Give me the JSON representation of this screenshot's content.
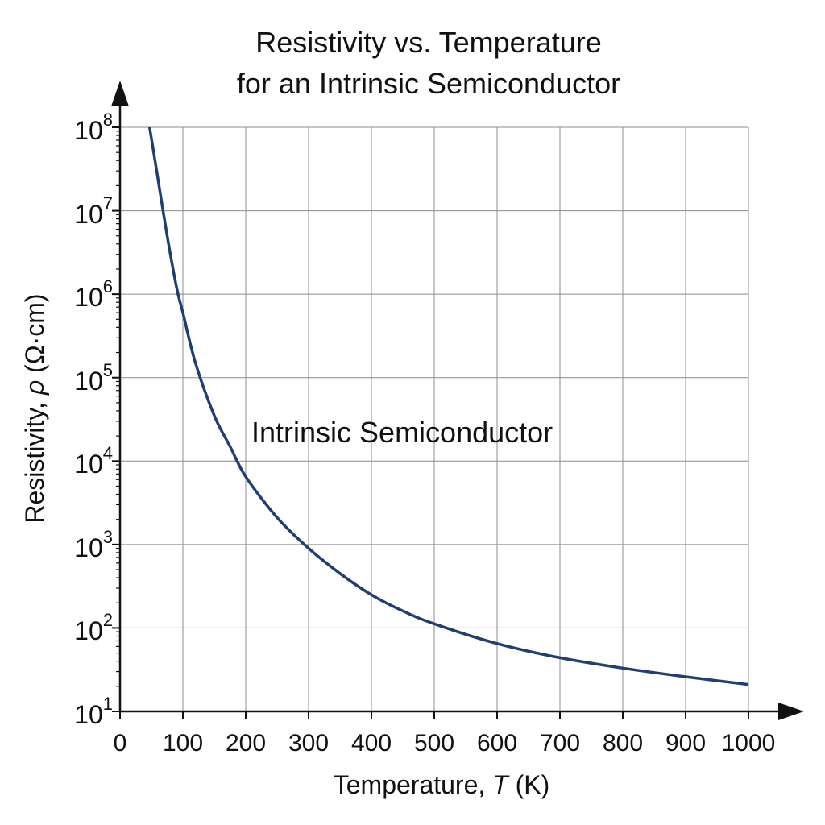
{
  "chart_data": {
    "type": "line",
    "title_lines": [
      "Resistivity vs. Temperature",
      "for an Intrinsic Semiconductor"
    ],
    "xlabel_parts": [
      "Temperature, ",
      "T",
      " (K)"
    ],
    "ylabel_parts": [
      "Resistivity, ",
      "ρ",
      " (Ω·cm)"
    ],
    "x_ticks": [
      "0",
      "100",
      "200",
      "300",
      "400",
      "500",
      "600",
      "700",
      "800",
      "900",
      "1000"
    ],
    "y_ticks": [
      {
        "base": "10",
        "exp": "1"
      },
      {
        "base": "10",
        "exp": "2"
      },
      {
        "base": "10",
        "exp": "3"
      },
      {
        "base": "10",
        "exp": "4"
      },
      {
        "base": "10",
        "exp": "5"
      },
      {
        "base": "10",
        "exp": "6"
      },
      {
        "base": "10",
        "exp": "7"
      },
      {
        "base": "10",
        "exp": "8"
      }
    ],
    "xlim": [
      0,
      1000
    ],
    "ylim": [
      10,
      100000000
    ],
    "y_scale": "log",
    "grid": true,
    "annotation": "Intrinsic Semiconductor",
    "series": [
      {
        "color": "#1f3f73",
        "x": [
          47,
          60,
          75,
          90,
          100,
          120,
          150,
          175,
          200,
          250,
          300,
          350,
          400,
          450,
          500,
          600,
          700,
          800,
          900,
          1000
        ],
        "y": [
          100000000,
          25000000,
          5000000,
          1200000,
          600000,
          150000,
          35000,
          15000,
          6500,
          2100,
          900,
          450,
          250,
          160,
          112,
          65,
          44,
          33,
          26,
          21
        ]
      }
    ]
  }
}
